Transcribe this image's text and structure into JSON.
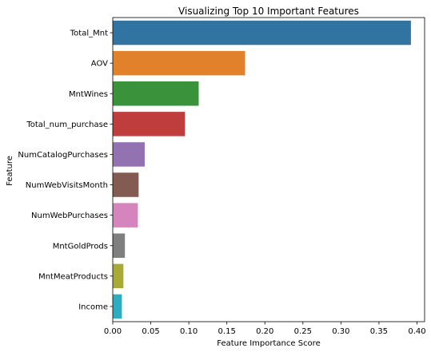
{
  "chart_data": {
    "type": "bar",
    "orientation": "horizontal",
    "title": "Visualizing Top 10 Important Features",
    "xlabel": "Feature Importance Score",
    "ylabel": "Feature",
    "xlim": [
      0,
      0.41
    ],
    "xticks": [
      0.0,
      0.05,
      0.1,
      0.15,
      0.2,
      0.25,
      0.3,
      0.35,
      0.4
    ],
    "xtick_labels": [
      "0.00",
      "0.05",
      "0.10",
      "0.15",
      "0.20",
      "0.25",
      "0.30",
      "0.35",
      "0.40"
    ],
    "grid": false,
    "categories": [
      "Total_Mnt",
      "AOV",
      "MntWines",
      "Total_num_purchase",
      "NumCatalogPurchases",
      "NumWebVisitsMonth",
      "NumWebPurchases",
      "MntGoldProds",
      "MntMeatProducts",
      "Income"
    ],
    "values": [
      0.392,
      0.174,
      0.113,
      0.095,
      0.042,
      0.034,
      0.033,
      0.016,
      0.014,
      0.012
    ],
    "colors": [
      "#3274a1",
      "#e1812c",
      "#3a923a",
      "#c03d3e",
      "#9372b2",
      "#845b53",
      "#d684bd",
      "#7f7f7f",
      "#a9aa35",
      "#2eadc1"
    ]
  }
}
